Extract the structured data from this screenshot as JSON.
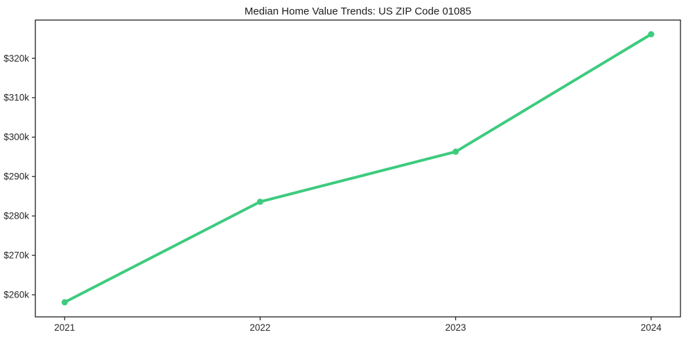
{
  "figure": {
    "title": "Median Home Value Trends: US ZIP Code 01085"
  },
  "chart_data": {
    "type": "line",
    "title": "Median Home Value Trends: US ZIP Code 01085",
    "x": [
      2021,
      2022,
      2023,
      2024
    ],
    "values": [
      258100,
      283600,
      296300,
      326100
    ],
    "x_tick_labels": [
      "2021",
      "2022",
      "2023",
      "2024"
    ],
    "y_tick_values": [
      260000,
      270000,
      280000,
      290000,
      300000,
      310000,
      320000
    ],
    "y_tick_labels": [
      "$260k",
      "$270k",
      "$280k",
      "$290k",
      "$300k",
      "$310k",
      "$320k"
    ],
    "xlim": [
      2020.85,
      2024.15
    ],
    "ylim": [
      254400,
      329700
    ],
    "xlabel": "",
    "ylabel": "",
    "grid": false,
    "legend": false,
    "line_color": "#3dcb7e",
    "marker_color": "#3dcb7e",
    "line_width": 4,
    "marker_radius": 4.5,
    "axis_color": "#1c1c1c",
    "text_color": "#262626",
    "background": "#ffffff"
  }
}
